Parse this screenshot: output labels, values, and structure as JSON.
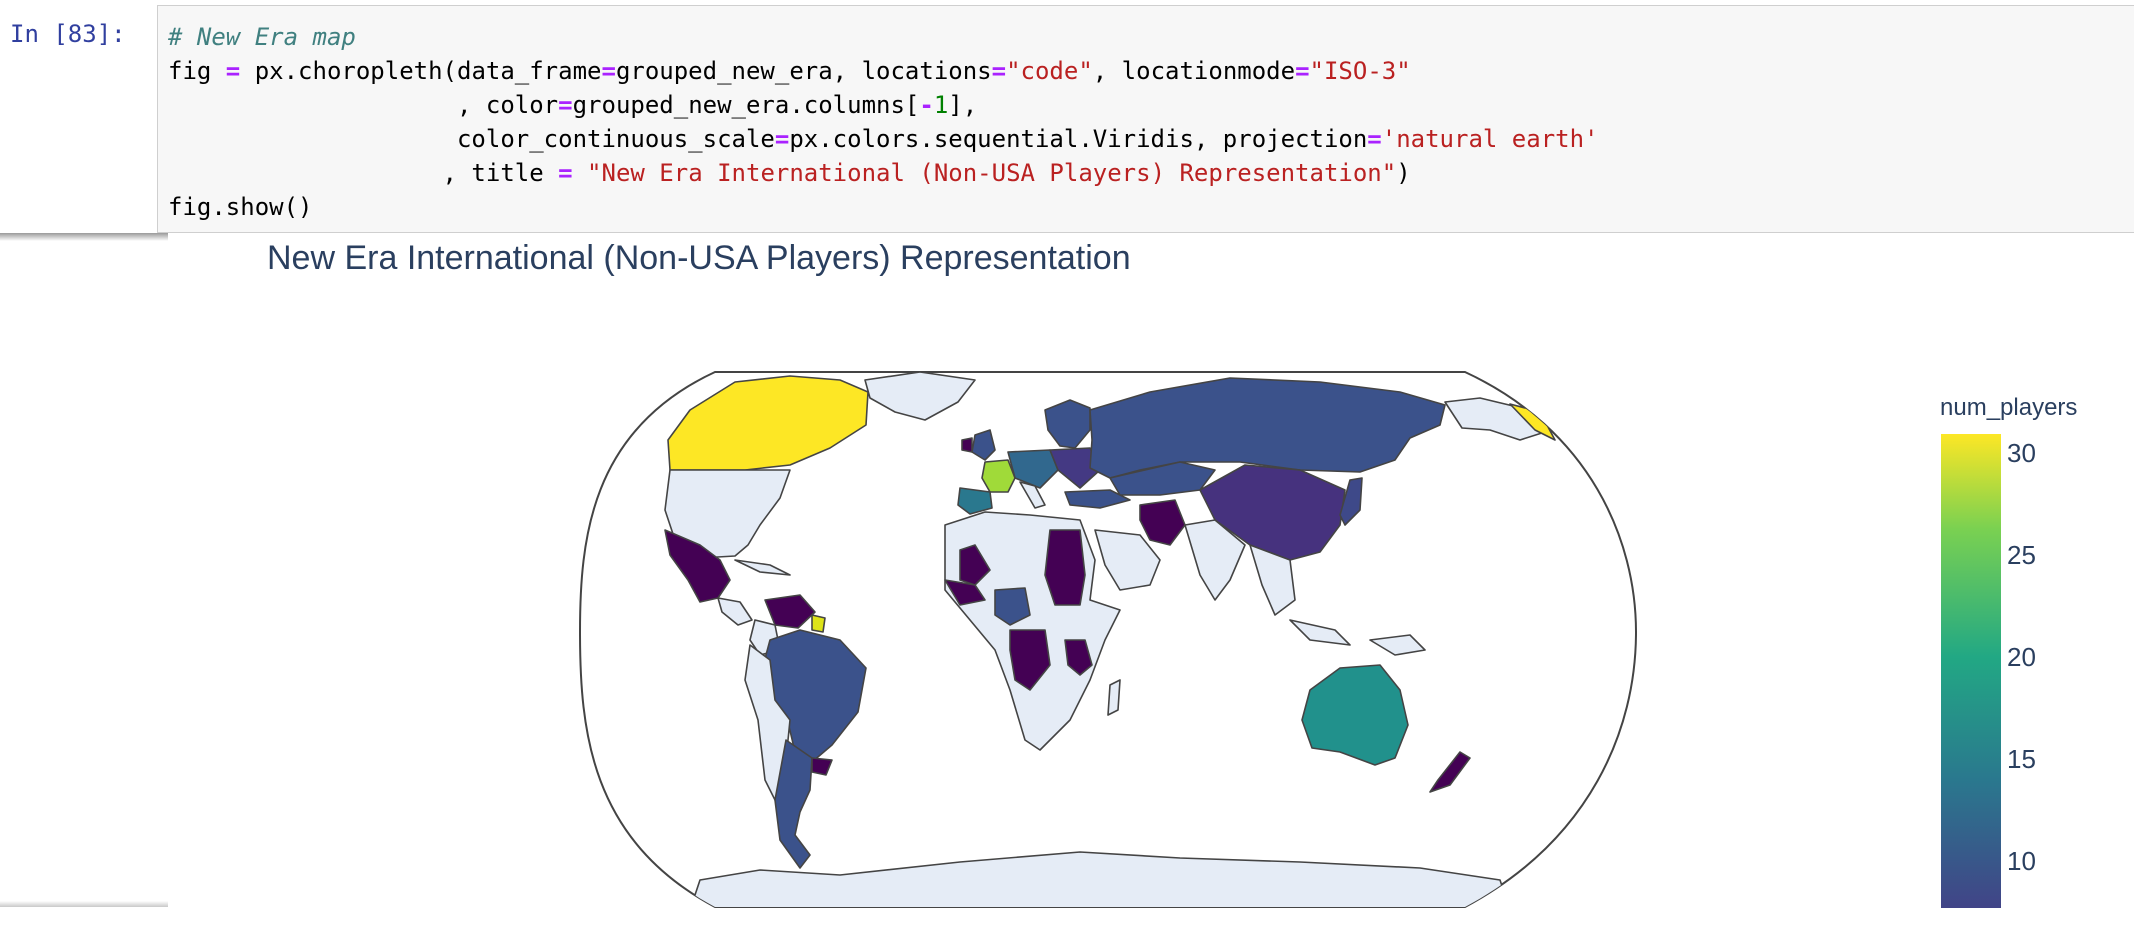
{
  "cell": {
    "prompt": "In [83]:",
    "lines": [
      {
        "tokens": [
          {
            "t": "# New Era map",
            "c": "cm"
          }
        ]
      },
      {
        "tokens": [
          {
            "t": "fig "
          },
          {
            "t": "=",
            "c": "op"
          },
          {
            "t": " px.choropleth(data_frame"
          },
          {
            "t": "=",
            "c": "op"
          },
          {
            "t": "grouped_new_era, locations"
          },
          {
            "t": "=",
            "c": "op"
          },
          {
            "t": "\"code\"",
            "c": "st"
          },
          {
            "t": ", locationmode"
          },
          {
            "t": "=",
            "c": "op"
          },
          {
            "t": "\"ISO-3\"",
            "c": "st"
          }
        ]
      },
      {
        "tokens": [
          {
            "t": "                    , color"
          },
          {
            "t": "=",
            "c": "op"
          },
          {
            "t": "grouped_new_era.columns["
          },
          {
            "t": "-",
            "c": "op"
          },
          {
            "t": "1",
            "c": "nu"
          },
          {
            "t": "],"
          }
        ]
      },
      {
        "tokens": [
          {
            "t": "                    color_continuous_scale"
          },
          {
            "t": "=",
            "c": "op"
          },
          {
            "t": "px.colors.sequential.Viridis, projection"
          },
          {
            "t": "=",
            "c": "op"
          },
          {
            "t": "'natural earth'",
            "c": "st"
          }
        ]
      },
      {
        "tokens": [
          {
            "t": "                   , title "
          },
          {
            "t": "=",
            "c": "op"
          },
          {
            "t": " "
          },
          {
            "t": "\"New Era International (Non-USA Players) Representation\"",
            "c": "st"
          },
          {
            "t": ")"
          }
        ]
      },
      {
        "tokens": [
          {
            "t": "fig.show()"
          }
        ]
      }
    ]
  },
  "figure": {
    "title": "New Era International (Non-USA Players) Representation",
    "colorbar": {
      "title": "num_players",
      "ticks": [
        "30",
        "25",
        "20",
        "15",
        "10"
      ],
      "range": [
        8,
        31
      ],
      "colorscale": "Viridis"
    },
    "colors": {
      "land_default": "#e5ecf6",
      "border": "#444444"
    }
  },
  "map_data": {
    "projection": "natural earth",
    "location_mode": "ISO-3",
    "value_key": "num_players",
    "regions": [
      {
        "name": "Canada",
        "value": 31
      },
      {
        "name": "France",
        "value": 26
      },
      {
        "name": "Australia",
        "value": 15
      },
      {
        "name": "Spain",
        "value": 14
      },
      {
        "name": "Brazil",
        "value": 12
      },
      {
        "name": "Russia",
        "value": 11
      },
      {
        "name": "Scandinavia",
        "value": 10
      },
      {
        "name": "Germany",
        "value": 11
      },
      {
        "name": "China",
        "value": 9
      },
      {
        "name": "Iran",
        "value": 8
      },
      {
        "name": "Mexico",
        "value": 8
      },
      {
        "name": "Argentina",
        "value": 11
      },
      {
        "name": "Japan",
        "value": 9
      },
      {
        "name": "Central Africa",
        "value": 10
      },
      {
        "name": "Egypt and Sudan",
        "value": 8
      },
      {
        "name": "Mali",
        "value": 8
      },
      {
        "name": "Venezuela",
        "value": 8
      },
      {
        "name": "Tanzania",
        "value": 8
      },
      {
        "name": "New Zealand",
        "value": 8
      },
      {
        "name": "Guiana",
        "value": 30
      }
    ]
  }
}
